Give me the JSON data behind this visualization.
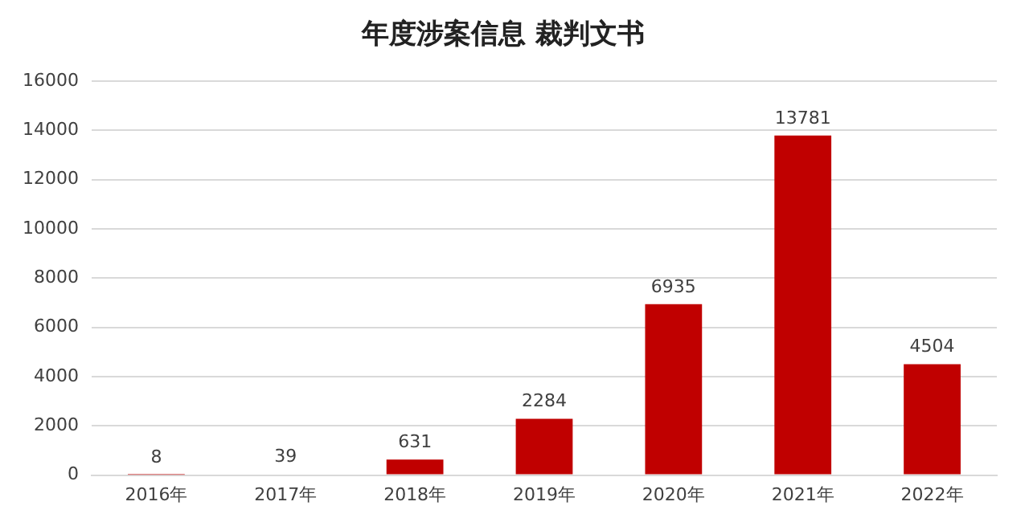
{
  "chart_data": {
    "type": "bar",
    "title": "年度涉案信息 裁判文书",
    "categories": [
      "2016年",
      "2017年",
      "2018年",
      "2019年",
      "2020年",
      "2021年",
      "2022年"
    ],
    "values": [
      8,
      39,
      631,
      2284,
      6935,
      13781,
      4504
    ],
    "color": "#c00000",
    "ylim": [
      0,
      16000
    ],
    "yticks": [
      0,
      2000,
      4000,
      6000,
      8000,
      10000,
      12000,
      14000,
      16000
    ],
    "grid": "y",
    "data_labels": true,
    "legend": false
  }
}
